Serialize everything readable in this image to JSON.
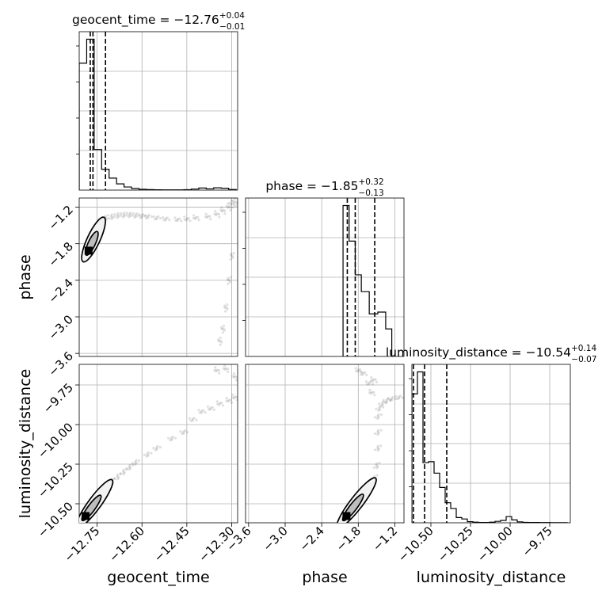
{
  "chart_data": [
    {
      "type": "corner",
      "parameters": [
        {
          "name": "geocent_time",
          "title_main": "geocent_time = −12.76",
          "title_plus": "+0.04",
          "title_minus": "−0.01",
          "range": [
            -12.81,
            -12.28
          ],
          "ticks": [
            -12.75,
            -12.6,
            -12.45,
            -12.3
          ],
          "tick_labels": [
            "−12.75",
            "−12.60",
            "−12.45",
            "−12.30"
          ],
          "quantiles": [
            -12.773,
            -12.764,
            -12.722
          ],
          "hist_edges": [
            -12.81,
            -12.785,
            -12.76,
            -12.735,
            -12.71,
            -12.685,
            -12.66,
            -12.635,
            -12.61,
            -12.585,
            -12.56,
            -12.535,
            -12.51,
            -12.485,
            -12.46,
            -12.435,
            -12.41,
            -12.385,
            -12.36,
            -12.335,
            -12.31,
            -12.285
          ],
          "hist_values": [
            1220,
            1450,
            390,
            200,
            115,
            60,
            30,
            15,
            8,
            5,
            3,
            2,
            2,
            2,
            4,
            10,
            20,
            12,
            22,
            18,
            6
          ]
        },
        {
          "name": "phase",
          "title_main": "phase = −1.85",
          "title_plus": "+0.32",
          "title_minus": "−0.13",
          "range": [
            -3.65,
            -1.05
          ],
          "ticks": [
            -3.6,
            -3.0,
            -2.4,
            -1.8,
            -1.2
          ],
          "tick_labels": [
            "−3.6",
            "−3.0",
            "−2.4",
            "−1.8",
            "−1.2"
          ],
          "quantiles": [
            -1.98,
            -1.85,
            -1.53
          ],
          "hist_edges": [
            -2.05,
            -1.95,
            -1.85,
            -1.75,
            -1.62,
            -1.48,
            -1.35,
            -1.25
          ],
          "hist_values": [
            1700,
            1300,
            920,
            730,
            480,
            500,
            310
          ]
        },
        {
          "name": "luminosity_distance",
          "title_main": "luminosity_distance = −10.54",
          "title_plus": "+0.14",
          "title_minus": "−0.07",
          "range": [
            -10.62,
            -9.62
          ],
          "ticks": [
            -10.5,
            -10.25,
            -10.0,
            -9.75
          ],
          "tick_labels": [
            "−10.50",
            "−10.25",
            "−10.00",
            "−9.75"
          ],
          "quantiles": [
            -10.61,
            -10.54,
            -10.4
          ],
          "hist_edges": [
            -10.62,
            -10.585,
            -10.55,
            -10.515,
            -10.48,
            -10.445,
            -10.41,
            -10.375,
            -10.34,
            -10.305,
            -10.27,
            -10.235,
            -10.2,
            -10.165,
            -10.13,
            -10.095,
            -10.06,
            -10.025,
            -9.99,
            -9.955,
            -9.92,
            -9.885,
            -9.85,
            -9.815,
            -9.78,
            -9.745,
            -9.71,
            -9.675,
            -9.64
          ],
          "hist_values": [
            1350,
            1580,
            630,
            640,
            520,
            370,
            210,
            150,
            55,
            40,
            12,
            6,
            3,
            3,
            6,
            15,
            25,
            65,
            30,
            10,
            4,
            3,
            3,
            2,
            2,
            1,
            1,
            1
          ]
        }
      ],
      "pairs": [
        {
          "x": "geocent_time",
          "y": "phase",
          "samples": [
            [
              -12.78,
              -1.92
            ],
            [
              -12.77,
              -1.85
            ],
            [
              -12.76,
              -1.75
            ],
            [
              -12.75,
              -1.62
            ],
            [
              -12.74,
              -1.5
            ],
            [
              -12.73,
              -1.42
            ],
            [
              -12.72,
              -1.38
            ],
            [
              -12.7,
              -1.36
            ],
            [
              -12.68,
              -1.34
            ],
            [
              -12.66,
              -1.33
            ],
            [
              -12.64,
              -1.33
            ],
            [
              -12.62,
              -1.34
            ],
            [
              -12.6,
              -1.35
            ],
            [
              -12.58,
              -1.36
            ],
            [
              -12.55,
              -1.38
            ],
            [
              -12.52,
              -1.4
            ],
            [
              -12.48,
              -1.41
            ],
            [
              -12.45,
              -1.4
            ],
            [
              -12.42,
              -1.38
            ],
            [
              -12.38,
              -1.36
            ],
            [
              -12.35,
              -1.32
            ],
            [
              -12.33,
              -1.26
            ],
            [
              -12.31,
              -1.2
            ],
            [
              -12.3,
              -1.15
            ],
            [
              -12.29,
              -1.12
            ],
            [
              -12.34,
              -3.4
            ],
            [
              -12.33,
              -3.2
            ],
            [
              -12.32,
              -2.85
            ],
            [
              -12.31,
              -2.4
            ],
            [
              -12.3,
              -2.0
            ]
          ]
        },
        {
          "x": "geocent_time",
          "y": "luminosity_distance",
          "samples": [
            [
              -12.79,
              -10.58
            ],
            [
              -12.78,
              -10.54
            ],
            [
              -12.76,
              -10.5
            ],
            [
              -12.74,
              -10.44
            ],
            [
              -12.72,
              -10.4
            ],
            [
              -12.7,
              -10.36
            ],
            [
              -12.68,
              -10.33
            ],
            [
              -12.66,
              -10.3
            ],
            [
              -12.64,
              -10.27
            ],
            [
              -12.62,
              -10.24
            ],
            [
              -12.58,
              -10.19
            ],
            [
              -12.55,
              -10.15
            ],
            [
              -12.5,
              -10.09
            ],
            [
              -12.46,
              -10.05
            ],
            [
              -12.43,
              -9.97
            ],
            [
              -12.4,
              -9.92
            ],
            [
              -12.37,
              -9.9
            ],
            [
              -12.34,
              -9.87
            ],
            [
              -12.31,
              -9.85
            ],
            [
              -12.29,
              -9.83
            ],
            [
              -12.35,
              -9.66
            ],
            [
              -12.32,
              -9.65
            ],
            [
              -12.29,
              -9.7
            ]
          ]
        },
        {
          "x": "phase",
          "y": "luminosity_distance",
          "samples": [
            [
              -2.0,
              -10.58
            ],
            [
              -1.95,
              -10.54
            ],
            [
              -1.85,
              -10.47
            ],
            [
              -1.75,
              -10.43
            ],
            [
              -1.62,
              -10.39
            ],
            [
              -1.52,
              -10.34
            ],
            [
              -1.49,
              -10.26
            ],
            [
              -1.47,
              -10.15
            ],
            [
              -1.47,
              -10.05
            ],
            [
              -1.47,
              -9.95
            ],
            [
              -1.45,
              -9.9
            ],
            [
              -1.4,
              -9.87
            ],
            [
              -1.33,
              -9.85
            ],
            [
              -1.25,
              -9.84
            ],
            [
              -1.13,
              -9.83
            ],
            [
              -1.62,
              -9.74
            ],
            [
              -1.72,
              -9.68
            ],
            [
              -1.8,
              -9.66
            ],
            [
              -1.55,
              -9.72
            ],
            [
              -1.58,
              -9.8
            ]
          ]
        }
      ]
    }
  ]
}
